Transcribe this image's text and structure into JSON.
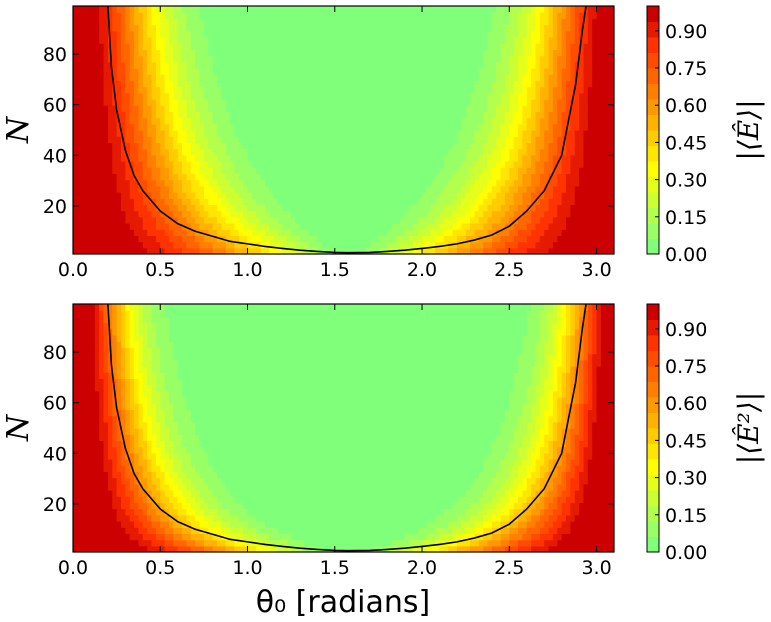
{
  "colors": {
    "low": "#80ff7a",
    "levels": [
      "#80ff7a",
      "#99ff66",
      "#b3ff4d",
      "#ccff33",
      "#e6ff1a",
      "#ffff00",
      "#ffe600",
      "#ffcc00",
      "#ffb300",
      "#ff9900",
      "#ff8000",
      "#ff6600",
      "#ff4d00",
      "#ff3300",
      "#e61a00",
      "#cc0000"
    ],
    "contour_line": "#000000"
  },
  "chart_data": [
    {
      "type": "heatmap",
      "xlim": [
        0.0,
        3.1
      ],
      "ylim": [
        1,
        99
      ],
      "x_ticks": [
        "0.0",
        "0.5",
        "1.0",
        "1.5",
        "2.0",
        "2.5",
        "3.0"
      ],
      "y_ticks": [
        "20",
        "40",
        "60",
        "80"
      ],
      "ylabel": "N",
      "xlabel": "",
      "colorbar": {
        "label": "|⟨Ê⟩|",
        "ticks": [
          "0.00",
          "0.15",
          "0.30",
          "0.45",
          "0.60",
          "0.75",
          "0.90"
        ],
        "range": [
          0.0,
          1.0
        ]
      },
      "contour_line": {
        "x": [
          0.2,
          0.22,
          0.25,
          0.3,
          0.35,
          0.4,
          0.5,
          0.6,
          0.7,
          0.8,
          0.9,
          1.0,
          1.1,
          1.2,
          1.3,
          1.4,
          1.5,
          1.57,
          1.7,
          1.8,
          1.9,
          2.0,
          2.1,
          2.2,
          2.3,
          2.4,
          2.5,
          2.6,
          2.7,
          2.8,
          2.88,
          2.92,
          2.94
        ],
        "y": [
          99,
          75,
          58,
          42,
          32,
          26,
          18,
          13,
          10,
          8,
          6,
          5,
          4,
          3.2,
          2.5,
          2,
          1.6,
          1.5,
          1.6,
          2,
          2.5,
          3.2,
          4,
          5,
          6.5,
          8.5,
          12,
          18,
          26,
          40,
          68,
          90,
          99
        ]
      }
    },
    {
      "type": "heatmap",
      "xlim": [
        0.0,
        3.1
      ],
      "ylim": [
        1,
        99
      ],
      "x_ticks": [
        "0.0",
        "0.5",
        "1.0",
        "1.5",
        "2.0",
        "2.5",
        "3.0"
      ],
      "y_ticks": [
        "20",
        "40",
        "60",
        "80"
      ],
      "ylabel": "N",
      "xlabel": "θ₀ [radians]",
      "colorbar": {
        "label": "|⟨Ê²⟩|",
        "ticks": [
          "0.00",
          "0.15",
          "0.30",
          "0.45",
          "0.60",
          "0.75",
          "0.90"
        ],
        "range": [
          0.0,
          1.0
        ]
      },
      "contour_line": {
        "x": [
          0.2,
          0.22,
          0.25,
          0.3,
          0.35,
          0.4,
          0.5,
          0.6,
          0.7,
          0.8,
          0.9,
          1.0,
          1.1,
          1.2,
          1.3,
          1.4,
          1.5,
          1.57,
          1.7,
          1.8,
          1.9,
          2.0,
          2.1,
          2.2,
          2.3,
          2.4,
          2.5,
          2.6,
          2.7,
          2.8,
          2.88,
          2.92,
          2.94
        ],
        "y": [
          99,
          75,
          58,
          42,
          32,
          26,
          18,
          13,
          10,
          8,
          6,
          5,
          4,
          3.2,
          2.5,
          2,
          1.6,
          1.5,
          1.6,
          2,
          2.5,
          3.2,
          4,
          5,
          6.5,
          8.5,
          12,
          18,
          26,
          40,
          68,
          90,
          99
        ]
      }
    }
  ]
}
